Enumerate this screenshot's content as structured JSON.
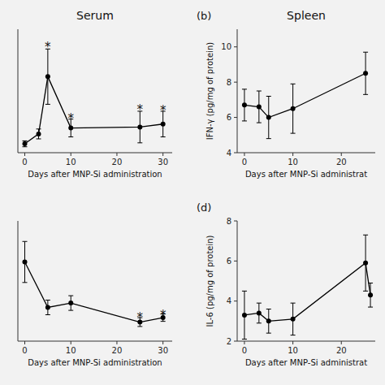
{
  "chart_data": [
    {
      "type": "line",
      "title": "Serum",
      "x": [
        0,
        3,
        5,
        10,
        25,
        30
      ],
      "values": [
        0.4,
        1.4,
        7.2,
        2.0,
        2.1,
        2.4
      ],
      "errors": [
        0.3,
        0.5,
        2.8,
        0.9,
        1.6,
        1.3
      ],
      "color": "#000000",
      "marker": "circle",
      "line_style": "solid",
      "annotations": [
        {
          "text": "*",
          "x": 5,
          "y": 10.4
        },
        {
          "text": "*",
          "x": 10,
          "y": 3.2
        },
        {
          "text": "*",
          "x": 25,
          "y": 4.1
        },
        {
          "text": "*",
          "x": 30,
          "y": 4.0
        }
      ],
      "xlim": [
        -1.5,
        32
      ],
      "ylim": [
        -0.5,
        12
      ],
      "xticks": [
        0,
        10,
        20,
        30
      ],
      "xlabel": "Days after MNP-Si administration",
      "tick_labels": "x"
    },
    {
      "type": "line",
      "title": "Spleen",
      "panel_label": "(b)",
      "x": [
        0,
        3,
        5,
        10,
        25
      ],
      "values": [
        6.7,
        6.6,
        6.0,
        6.5,
        8.5
      ],
      "errors": [
        0.9,
        0.9,
        1.2,
        1.4,
        1.2
      ],
      "color": "#000000",
      "marker": "circle",
      "line_style": "solid",
      "xlim": [
        -1.5,
        27
      ],
      "ylim": [
        4,
        11
      ],
      "xticks": [
        0,
        10,
        20
      ],
      "yticks": [
        4,
        6,
        8,
        10
      ],
      "xlabel": "Days after MNP-Si administrat",
      "ylabel": "IFN-γ (pg/mg of protein)"
    },
    {
      "type": "line",
      "x": [
        0,
        5,
        10,
        25,
        30
      ],
      "values": [
        5.2,
        2.1,
        2.4,
        1.1,
        1.4
      ],
      "errors": [
        1.4,
        0.5,
        0.5,
        0.3,
        0.25
      ],
      "color": "#000000",
      "marker": "circle",
      "line_style": "solid",
      "annotations": [
        {
          "text": "*",
          "x": 25,
          "y": 1.55
        },
        {
          "text": "*",
          "x": 30,
          "y": 1.75
        }
      ],
      "xlim": [
        -1.5,
        32
      ],
      "ylim": [
        -0.2,
        8
      ],
      "xticks": [
        0,
        10,
        20,
        30
      ],
      "xlabel": "Days after MNP-Si administration",
      "tick_labels": "x"
    },
    {
      "type": "line",
      "panel_label": "(d)",
      "x": [
        0,
        3,
        5,
        10,
        25,
        26
      ],
      "values": [
        3.3,
        3.4,
        3.0,
        3.1,
        5.9,
        4.3
      ],
      "errors": [
        1.2,
        0.5,
        0.6,
        0.8,
        1.4,
        0.6
      ],
      "color": "#000000",
      "marker": "circle",
      "line_style": "solid",
      "xlim": [
        -1.5,
        27
      ],
      "ylim": [
        2,
        8
      ],
      "xticks": [
        0,
        10,
        20
      ],
      "yticks": [
        2,
        4,
        6,
        8
      ],
      "xlabel": "Days after MNP-Si administrat",
      "ylabel": "IL-6 (pg/mg of protein)"
    }
  ]
}
